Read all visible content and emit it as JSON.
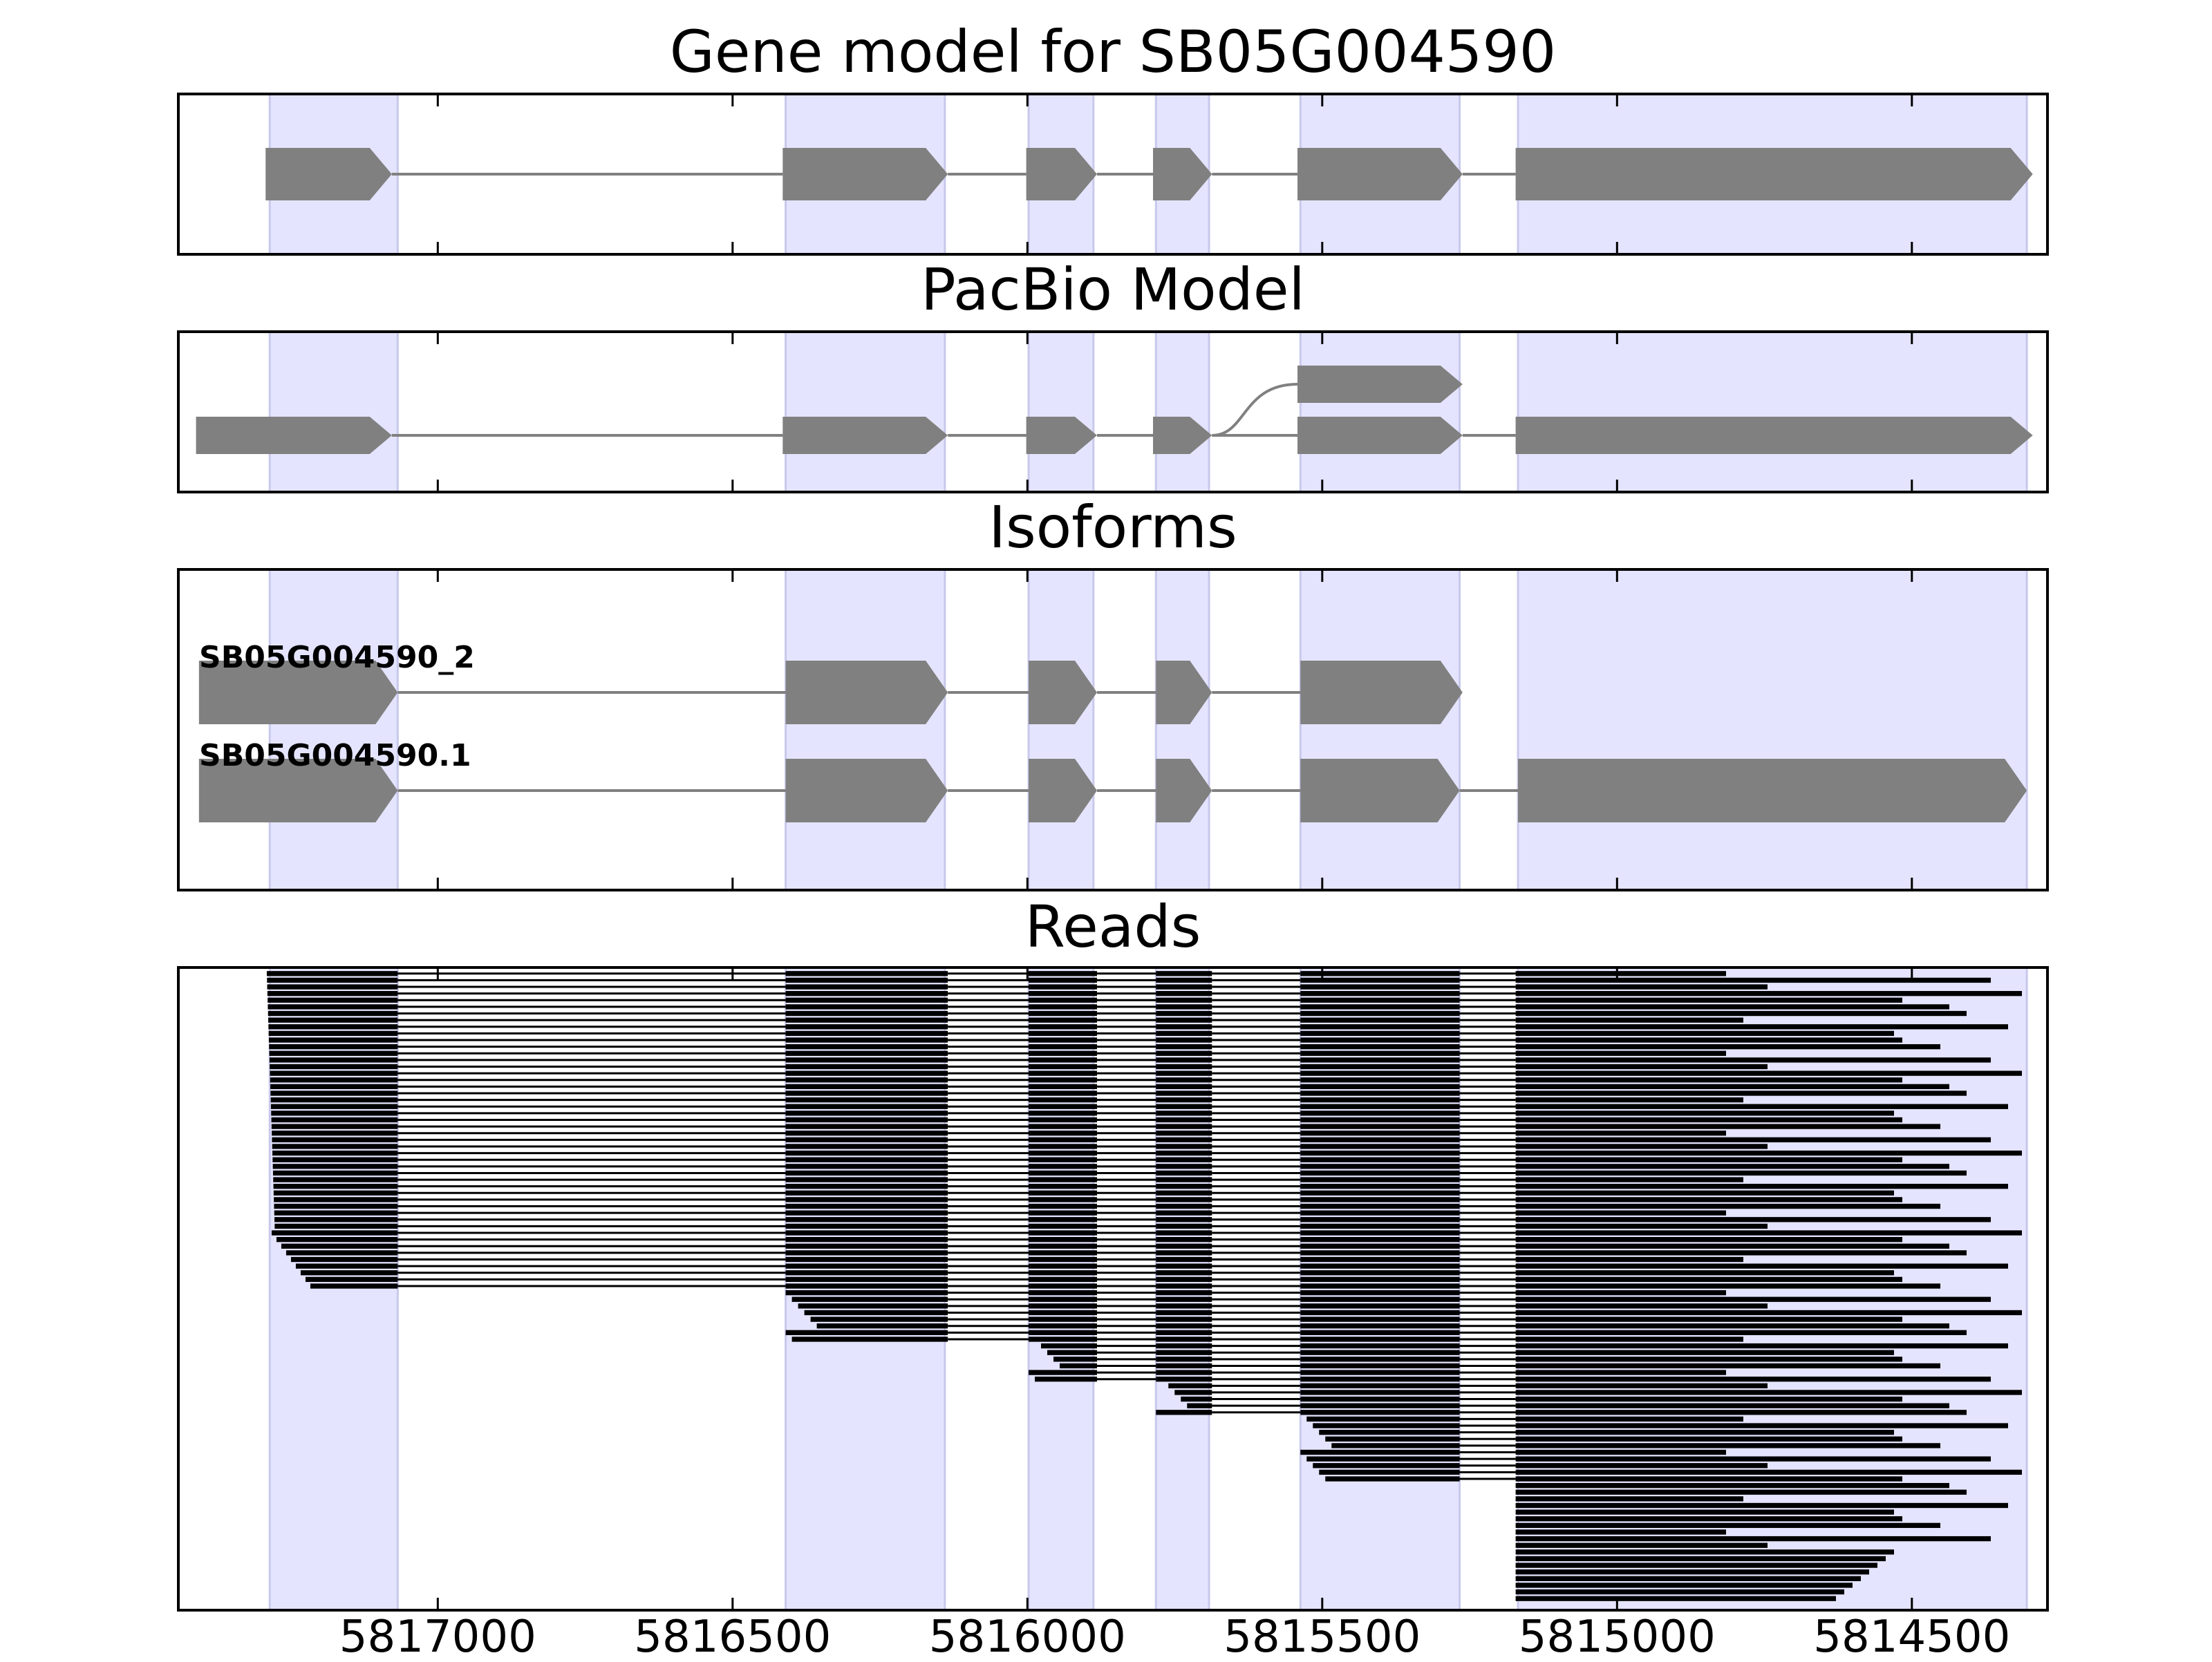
{
  "colors": {
    "exon_band": "#e4e4ff",
    "exon_band_edge": "#c8c8ec",
    "gene_feature": "#808080",
    "read": "#000000",
    "frame": "#000000"
  },
  "chart_data": {
    "type": "gene-model-track",
    "xlim": [
      5817440,
      5814270
    ],
    "x_reversed": true,
    "xticks": [
      5817000,
      5816500,
      5816000,
      5815500,
      5815000,
      5814500
    ],
    "xtick_labels": [
      "5817000",
      "5816500",
      "5816000",
      "5815500",
      "5815000",
      "5814500"
    ],
    "highlight_exons": [
      [
        5817285,
        5817068
      ],
      [
        5816410,
        5816140
      ],
      [
        5815998,
        5815888
      ],
      [
        5815782,
        5815692
      ],
      [
        5815537,
        5815267
      ],
      [
        5815168,
        5814305
      ]
    ],
    "panels": [
      {
        "id": "gene-model",
        "title": "Gene model for SB05G004590",
        "rows": [
          {
            "label": "",
            "exons": [
              [
                5817292,
                5817078
              ],
              [
                5816415,
                5816135
              ],
              [
                5816002,
                5815882
              ],
              [
                5815787,
                5815687
              ],
              [
                5815542,
                5815262
              ],
              [
                5815172,
                5814295
              ]
            ]
          }
        ]
      },
      {
        "id": "pacbio-model",
        "title": "PacBio Model",
        "rows": [
          {
            "label": "",
            "exons": [
              [
                5817410,
                5817078
              ],
              [
                5816415,
                5816135
              ],
              [
                5816002,
                5815882
              ],
              [
                5815787,
                5815687
              ],
              [
                5815542,
                5815262
              ],
              [
                5815172,
                5814295
              ]
            ],
            "branch": {
              "from_x": 5815687,
              "to_x": 5815542,
              "upper_exon": [
                5815542,
                5815262
              ]
            }
          }
        ]
      },
      {
        "id": "isoforms",
        "title": "Isoforms",
        "rows": [
          {
            "label": "SB05G004590_2",
            "exons": [
              [
                5817405,
                5817068
              ],
              [
                5816410,
                5816135
              ],
              [
                5815998,
                5815882
              ],
              [
                5815782,
                5815687
              ],
              [
                5815537,
                5815262
              ]
            ]
          },
          {
            "label": "SB05G004590.1",
            "exons": [
              [
                5817405,
                5817068
              ],
              [
                5816410,
                5816135
              ],
              [
                5815998,
                5815882
              ],
              [
                5815782,
                5815687
              ],
              [
                5815537,
                5815267
              ],
              [
                5815168,
                5814305
              ]
            ]
          }
        ]
      },
      {
        "id": "reads",
        "title": "Reads",
        "read_count": 95,
        "stacked_by": "start position"
      }
    ]
  }
}
